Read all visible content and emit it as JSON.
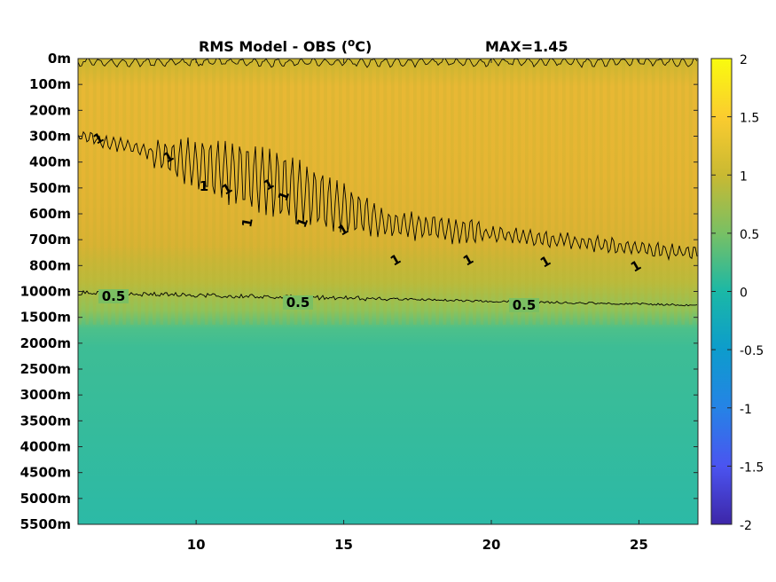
{
  "chart_data": {
    "type": "heatmap",
    "title": "RMS Model - OBS (",
    "title_unit": "°C)",
    "title_max": "MAX=1.45",
    "xlabel": "",
    "ylabel": "",
    "xlim": [
      6,
      27
    ],
    "x_ticks": [
      10,
      15,
      20,
      25
    ],
    "y_ticks": [
      "0m",
      "100m",
      "200m",
      "300m",
      "400m",
      "500m",
      "600m",
      "700m",
      "800m",
      "1000m",
      "1500m",
      "2000m",
      "2500m",
      "3000m",
      "3500m",
      "4000m",
      "4500m",
      "5000m",
      "5500m"
    ],
    "colorbar": {
      "min": -2,
      "max": 2,
      "ticks": [
        2,
        1.5,
        1,
        0.5,
        0,
        -0.5,
        -1,
        -1.5,
        -2
      ],
      "colormap": "parula"
    },
    "contours": [
      {
        "level": 1,
        "labels": [
          "1",
          "1",
          "1",
          "1",
          "1",
          "1",
          "1",
          "1",
          "1",
          "1",
          "1",
          "1",
          "1"
        ]
      },
      {
        "level": 0.5,
        "labels": [
          "0.5",
          "0.5",
          "0.5"
        ]
      }
    ],
    "grid": false
  }
}
